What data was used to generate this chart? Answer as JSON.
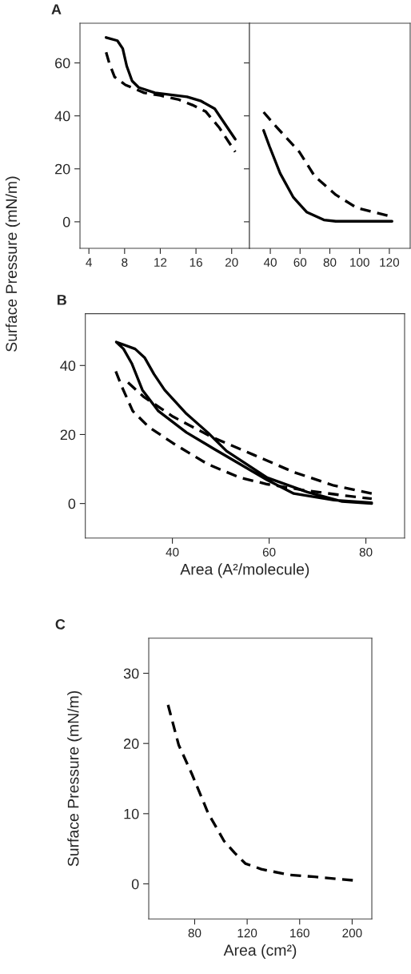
{
  "chart_data": [
    {
      "type": "line",
      "title": "A",
      "ylabel": "Surface Pressure (mN/m)",
      "xlim": [
        3,
        22
      ],
      "xticks": [
        4,
        8,
        12,
        16,
        20
      ],
      "ylim": [
        -10,
        75
      ],
      "yticks": [
        0,
        20,
        40,
        60
      ],
      "grid": false,
      "legend": false,
      "marker": "none",
      "series": [
        {
          "color": "#000000",
          "line_style": "solid",
          "x": [
            5.93,
            7.19,
            7.79,
            8.24,
            8.84,
            9.59,
            11.4,
            15.0,
            16.5,
            18.1,
            18.9,
            20.4
          ],
          "values": [
            69.6,
            68.4,
            65.4,
            58.8,
            53.2,
            50.7,
            48.7,
            47.2,
            45.7,
            42.7,
            38.7,
            31.2
          ]
        },
        {
          "color": "#000000",
          "line_style": "dashed",
          "x": [
            5.93,
            6.29,
            6.88,
            8.09,
            10.2,
            12.0,
            14.1,
            15.6,
            17.1,
            18.6,
            20.4
          ],
          "values": [
            64,
            59.8,
            54.7,
            51.7,
            48.7,
            47.7,
            46.1,
            44.1,
            41.6,
            35.6,
            26.4
          ]
        }
      ]
    },
    {
      "type": "line",
      "xlim": [
        26,
        134
      ],
      "xticks": [
        40,
        60,
        80,
        100,
        120
      ],
      "ylim": [
        -10,
        75
      ],
      "yticks": [
        0,
        20,
        40,
        60
      ],
      "tick_labels": "x",
      "grid": false,
      "legend": false,
      "marker": "none",
      "series": [
        {
          "color": "#000000",
          "line_style": "solid",
          "x": [
            35.5,
            39.5,
            46.6,
            55.5,
            64.4,
            76.0,
            84.0,
            121.8
          ],
          "values": [
            34.5,
            28.4,
            18.3,
            9.2,
            3.7,
            0.7,
            0.2,
            0.2
          ]
        },
        {
          "color": "#000000",
          "line_style": "dashed",
          "x": [
            35.5,
            43.0,
            59.5,
            69.7,
            84.0,
            98.3,
            121.8
          ],
          "values": [
            41.4,
            36.5,
            26.4,
            17.3,
            10.2,
            5.2,
            1.9
          ]
        }
      ]
    },
    {
      "type": "line",
      "title": "B",
      "xlabel": "Area (A²/molecule)",
      "xlim": [
        22,
        88
      ],
      "xticks": [
        40,
        60,
        80
      ],
      "ylim": [
        -10,
        55
      ],
      "yticks": [
        0,
        20,
        40
      ],
      "grid": false,
      "legend": false,
      "marker": "none",
      "series": [
        {
          "color": "#000000",
          "line_style": "solid",
          "x": [
            81.2,
            75.1,
            67.9,
            59.6,
            51.2,
            47.3,
            42.9,
            38.4,
            36.2,
            34.3,
            32.3,
            28.4,
            29.9,
            31.6,
            33.8,
            37.1,
            42.9,
            48.4,
            54,
            59.6,
            65.1,
            73.4,
            81.2
          ],
          "values": [
            0,
            0.6,
            3.3,
            7.5,
            15.2,
            20.6,
            26,
            32.9,
            37.5,
            42.2,
            44.8,
            46.8,
            44.8,
            40.6,
            32.9,
            26.8,
            20.6,
            16,
            11.4,
            6.8,
            2.9,
            1.0,
            0.2
          ]
        },
        {
          "color": "#000000",
          "line_style": "dashed",
          "x": [
            81.2,
            73.4,
            65.1,
            56.8,
            48.4,
            40.1,
            34,
            29.8
          ],
          "values": [
            2.9,
            5.2,
            9.1,
            14.1,
            19.1,
            25.2,
            31,
            36.4
          ]
        },
        {
          "color": "#000000",
          "line_style": "dashed",
          "x": [
            28.3,
            29.6,
            31.8,
            35.1,
            40.1,
            47.3,
            54,
            59.6,
            67.9,
            76.2,
            81.2
          ],
          "values": [
            38.3,
            33.7,
            26.8,
            22.2,
            17.5,
            11.4,
            7.5,
            5.6,
            3.7,
            2.2,
            1.4
          ]
        }
      ]
    },
    {
      "type": "line",
      "title": "C",
      "xlabel": "Area (cm²)",
      "ylabel": "Surface Pressure (mN/m)",
      "xlim": [
        45,
        215
      ],
      "xticks": [
        80,
        120,
        160,
        200
      ],
      "ylim": [
        -5,
        35
      ],
      "yticks": [
        0,
        10,
        20,
        30
      ],
      "grid": false,
      "legend": false,
      "marker": "none",
      "series": [
        {
          "color": "#000000",
          "line_style": "dashed",
          "x": [
            59.7,
            67.8,
            78,
            90.2,
            102.4,
            110.5,
            118.6,
            130.8,
            151.1,
            171.5,
            200.9
          ],
          "values": [
            25.5,
            19.8,
            15.6,
            10.1,
            6.1,
            4.4,
            2.9,
            2.1,
            1.3,
            1.0,
            0.5
          ]
        }
      ]
    }
  ]
}
